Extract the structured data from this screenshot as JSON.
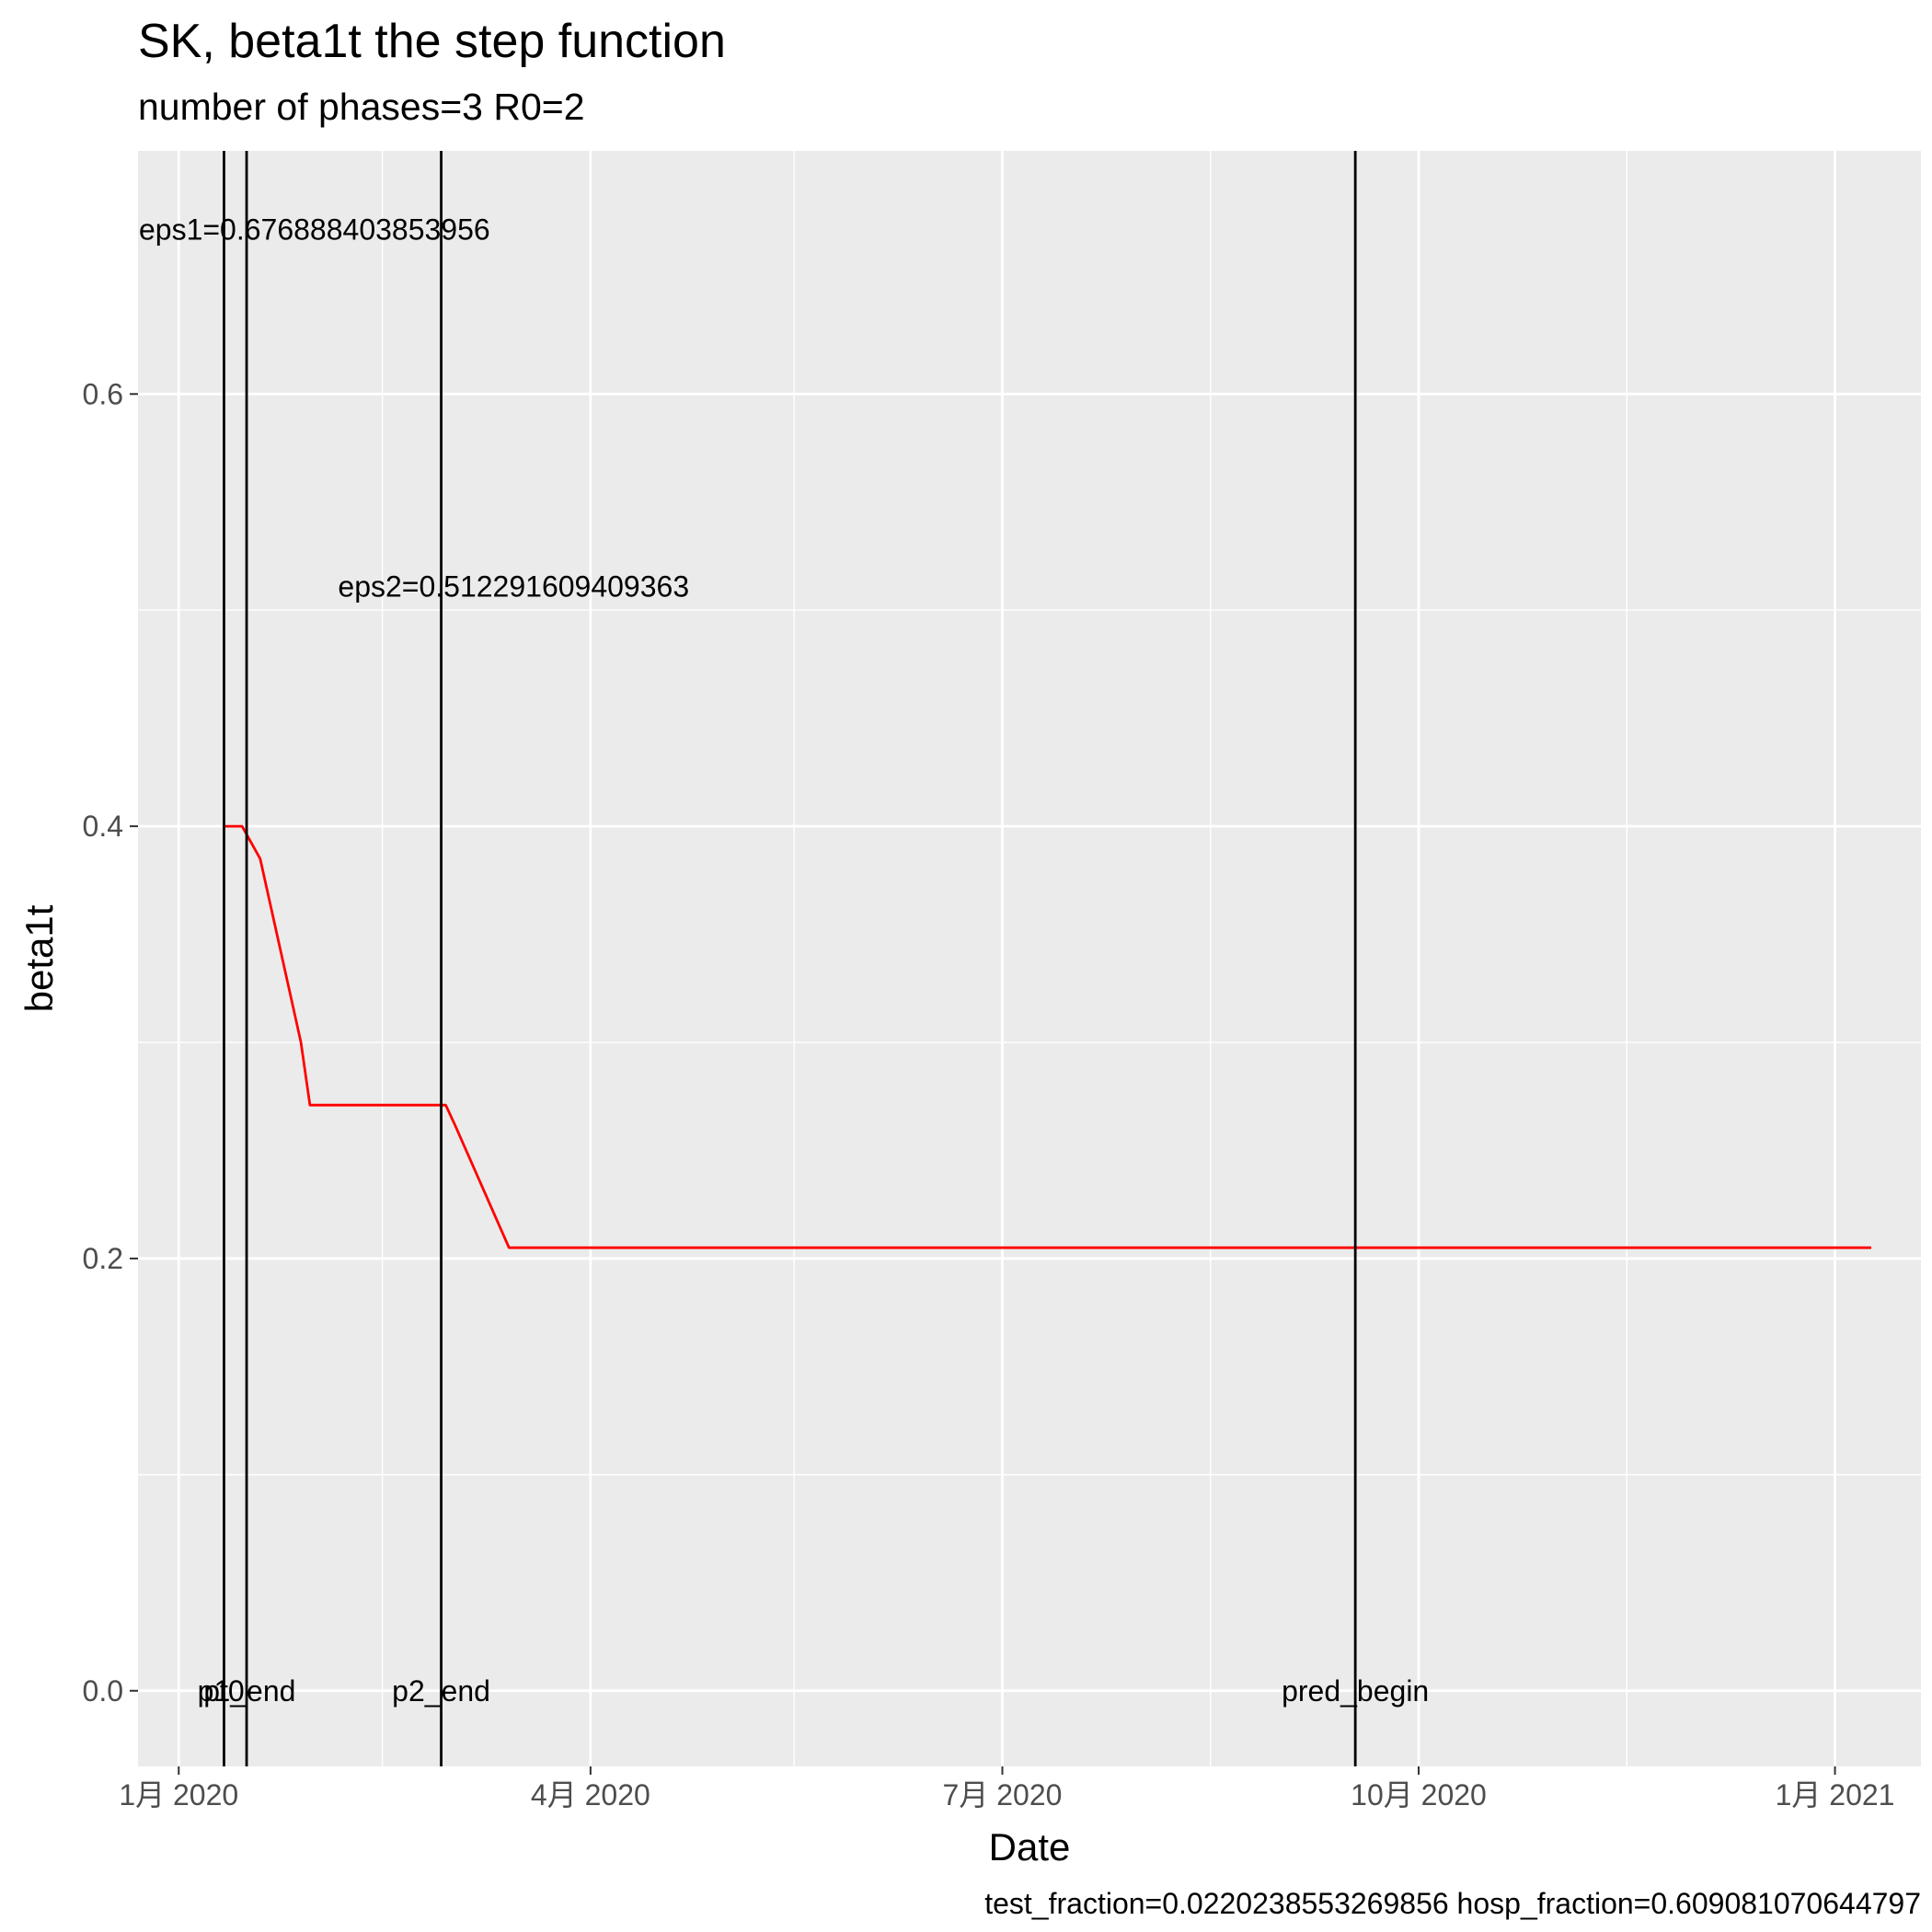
{
  "chart_data": {
    "type": "line",
    "title": "SK, beta1t the step function",
    "subtitle": "number of phases=3   R0=2",
    "xlabel": "Date",
    "ylabel": "beta1t",
    "caption": "test_fraction=0.0220238553269856   hosp_fraction=0.609081070644797",
    "x_is_date": true,
    "xlim": [
      "2019-12-23",
      "2021-01-20"
    ],
    "ylim": [
      -0.035,
      0.7125
    ],
    "x_ticks": [
      {
        "date": "2020-01-01",
        "label": "1月 2020"
      },
      {
        "date": "2020-04-01",
        "label": "4月 2020"
      },
      {
        "date": "2020-07-01",
        "label": "7月 2020"
      },
      {
        "date": "2020-10-01",
        "label": "10月 2020"
      },
      {
        "date": "2021-01-01",
        "label": "1月 2021"
      }
    ],
    "x_minor_dates": [
      "2020-02-15",
      "2020-05-16",
      "2020-08-16",
      "2020-11-16"
    ],
    "y_ticks": [
      0.0,
      0.2,
      0.4,
      0.6
    ],
    "y_tick_labels": [
      "0.0",
      "0.2",
      "0.4",
      "0.6"
    ],
    "y_minor": [
      0.1,
      0.3,
      0.5
    ],
    "grid": true,
    "series": [
      {
        "color": "#ff0000",
        "points": [
          {
            "x": "2020-01-11",
            "y": 0.4
          },
          {
            "x": "2020-01-15",
            "y": 0.4
          },
          {
            "x": "2020-01-19",
            "y": 0.385
          },
          {
            "x": "2020-01-28",
            "y": 0.3
          },
          {
            "x": "2020-01-30",
            "y": 0.271
          },
          {
            "x": "2020-02-29",
            "y": 0.271
          },
          {
            "x": "2020-03-02",
            "y": 0.262
          },
          {
            "x": "2020-03-14",
            "y": 0.205
          },
          {
            "x": "2021-01-09",
            "y": 0.205
          }
        ]
      }
    ],
    "vlines": [
      {
        "x": "2020-01-11",
        "label": "pt0"
      },
      {
        "x": "2020-01-16",
        "label": "p1_end"
      },
      {
        "x": "2020-02-28",
        "label": "p2_end"
      },
      {
        "x": "2020-09-17",
        "label": "pred_begin"
      }
    ],
    "annotations": [
      {
        "x": "2020-01-31",
        "y": 0.676,
        "text": "eps1=0.676888403853956"
      },
      {
        "x": "2020-03-15",
        "y": 0.511,
        "text": "eps2=0.512291609409363"
      }
    ]
  }
}
